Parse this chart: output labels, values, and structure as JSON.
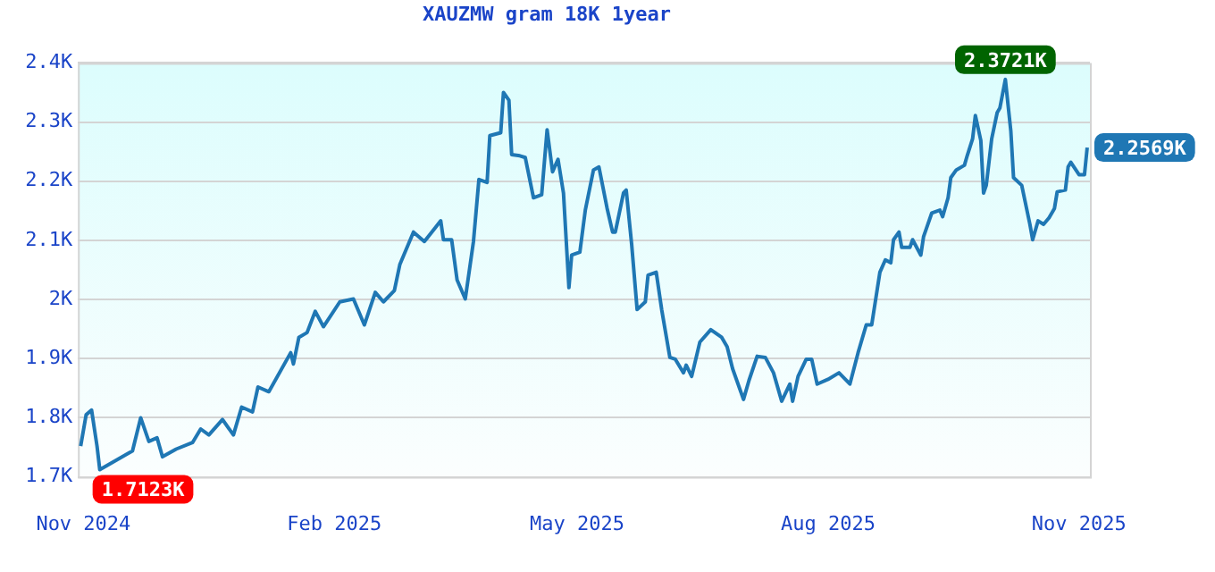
{
  "chart_data": {
    "type": "line",
    "title": "XAUZMW gram 18K 1year",
    "x": [
      "2024-10-31",
      "2024-11-02",
      "2024-11-04",
      "2024-11-06",
      "2024-11-07",
      "2024-11-19",
      "2024-11-22",
      "2024-11-25",
      "2024-11-28",
      "2024-11-30",
      "2024-12-05",
      "2024-12-11",
      "2024-12-14",
      "2024-12-17",
      "2024-12-22",
      "2024-12-26",
      "2024-12-29",
      "2025-01-02",
      "2025-01-04",
      "2025-01-08",
      "2025-01-16",
      "2025-01-17",
      "2025-01-19",
      "2025-01-22",
      "2025-01-25",
      "2025-01-28",
      "2025-02-03",
      "2025-02-08",
      "2025-02-12",
      "2025-02-16",
      "2025-02-19",
      "2025-02-23",
      "2025-02-25",
      "2025-03-02",
      "2025-03-06",
      "2025-03-12",
      "2025-03-13",
      "2025-03-16",
      "2025-03-18",
      "2025-03-21",
      "2025-03-24",
      "2025-03-26",
      "2025-03-29",
      "2025-03-30",
      "2025-04-03",
      "2025-04-04",
      "2025-04-06",
      "2025-04-07",
      "2025-04-10",
      "2025-04-12",
      "2025-04-15",
      "2025-04-18",
      "2025-04-20",
      "2025-04-22",
      "2025-04-24",
      "2025-04-26",
      "2025-04-28",
      "2025-04-29",
      "2025-05-02",
      "2025-05-04",
      "2025-05-07",
      "2025-05-09",
      "2025-05-12",
      "2025-05-14",
      "2025-05-15",
      "2025-05-18",
      "2025-05-19",
      "2025-05-21",
      "2025-05-23",
      "2025-05-26",
      "2025-05-27",
      "2025-05-30",
      "2025-06-01",
      "2025-06-04",
      "2025-06-06",
      "2025-06-09",
      "2025-06-10",
      "2025-06-12",
      "2025-06-15",
      "2025-06-19",
      "2025-06-23",
      "2025-06-25",
      "2025-06-27",
      "2025-07-01",
      "2025-07-03",
      "2025-07-06",
      "2025-07-09",
      "2025-07-12",
      "2025-07-15",
      "2025-07-18",
      "2025-07-19",
      "2025-07-21",
      "2025-07-24",
      "2025-07-26",
      "2025-07-28",
      "2025-08-01",
      "2025-08-05",
      "2025-08-09",
      "2025-08-12",
      "2025-08-15",
      "2025-08-17",
      "2025-08-20",
      "2025-08-22",
      "2025-08-24",
      "2025-08-25",
      "2025-08-27",
      "2025-08-28",
      "2025-08-31",
      "2025-09-01",
      "2025-09-04",
      "2025-09-05",
      "2025-09-08",
      "2025-09-11",
      "2025-09-12",
      "2025-09-14",
      "2025-09-15",
      "2025-09-17",
      "2025-09-20",
      "2025-09-21",
      "2025-09-23",
      "2025-09-24",
      "2025-09-26",
      "2025-09-27",
      "2025-09-28",
      "2025-09-30",
      "2025-10-02",
      "2025-10-03",
      "2025-10-05",
      "2025-10-07",
      "2025-10-08",
      "2025-10-11",
      "2025-10-14",
      "2025-10-15",
      "2025-10-17",
      "2025-10-19",
      "2025-10-21",
      "2025-10-23",
      "2025-10-24",
      "2025-10-27",
      "2025-10-28",
      "2025-10-29",
      "2025-11-01",
      "2025-11-03",
      "2025-11-04"
    ],
    "series": [
      {
        "color": "#1f77b4",
        "values": [
          1.752,
          1.805,
          1.813,
          1.752,
          1.7123,
          1.744,
          1.8,
          1.76,
          1.766,
          1.734,
          1.747,
          1.758,
          1.781,
          1.771,
          1.797,
          1.771,
          1.818,
          1.81,
          1.852,
          1.844,
          1.91,
          1.891,
          1.936,
          1.944,
          1.98,
          1.954,
          1.996,
          2.001,
          1.957,
          2.012,
          1.996,
          2.015,
          2.059,
          2.114,
          2.098,
          2.133,
          2.101,
          2.101,
          2.033,
          2.001,
          2.098,
          2.203,
          2.198,
          2.277,
          2.282,
          2.35,
          2.337,
          2.245,
          2.243,
          2.24,
          2.172,
          2.177,
          2.287,
          2.216,
          2.237,
          2.18,
          2.02,
          2.075,
          2.08,
          2.151,
          2.219,
          2.224,
          2.154,
          2.114,
          2.114,
          2.18,
          2.185,
          2.093,
          1.983,
          1.996,
          2.041,
          2.046,
          1.983,
          1.902,
          1.899,
          1.876,
          1.889,
          1.87,
          1.928,
          1.949,
          1.936,
          1.92,
          1.883,
          1.831,
          1.863,
          1.904,
          1.902,
          1.876,
          1.828,
          1.857,
          1.828,
          1.87,
          1.899,
          1.899,
          1.857,
          1.865,
          1.876,
          1.857,
          1.91,
          1.957,
          1.957,
          2.046,
          2.067,
          2.062,
          2.101,
          2.114,
          2.088,
          2.088,
          2.101,
          2.075,
          2.106,
          2.146,
          2.151,
          2.14,
          2.172,
          2.206,
          2.219,
          2.227,
          2.243,
          2.272,
          2.311,
          2.269,
          2.18,
          2.193,
          2.272,
          2.316,
          2.324,
          2.3721,
          2.285,
          2.206,
          2.193,
          2.127,
          2.101,
          2.133,
          2.127,
          2.138,
          2.154,
          2.182,
          2.185,
          2.224,
          2.232,
          2.211,
          2.211,
          2.2569
        ]
      }
    ],
    "xlim": [
      "2024-10-30",
      "2025-11-05"
    ],
    "xticks": [
      {
        "value": "2024-11-01",
        "label": "Nov 2024"
      },
      {
        "value": "2025-02-01",
        "label": "Feb 2025"
      },
      {
        "value": "2025-05-01",
        "label": "May 2025"
      },
      {
        "value": "2025-08-01",
        "label": "Aug 2025"
      },
      {
        "value": "2025-11-01",
        "label": "Nov 2025"
      }
    ],
    "ylim": [
      1.7,
      2.4
    ],
    "yticks": [
      {
        "value": 1.7,
        "label": "1.7K"
      },
      {
        "value": 1.8,
        "label": "1.8K"
      },
      {
        "value": 1.9,
        "label": "1.9K"
      },
      {
        "value": 2,
        "label": "2K"
      },
      {
        "value": 2.1,
        "label": "2.1K"
      },
      {
        "value": 2.2,
        "label": "2.2K"
      },
      {
        "value": 2.3,
        "label": "2.3K"
      },
      {
        "value": 2.4,
        "label": "2.4K"
      }
    ],
    "grid": "y",
    "legend": false,
    "marker": "none",
    "line_style": "solid",
    "annotations": [
      {
        "text": "1.7123K",
        "x": "2024-11-07",
        "y": 1.7123
      },
      {
        "text": "2.3721K",
        "x": "2025-10-05",
        "y": 2.3721
      },
      {
        "text": "2.2569K",
        "x": "2025-11-04",
        "y": 2.2569
      }
    ]
  }
}
